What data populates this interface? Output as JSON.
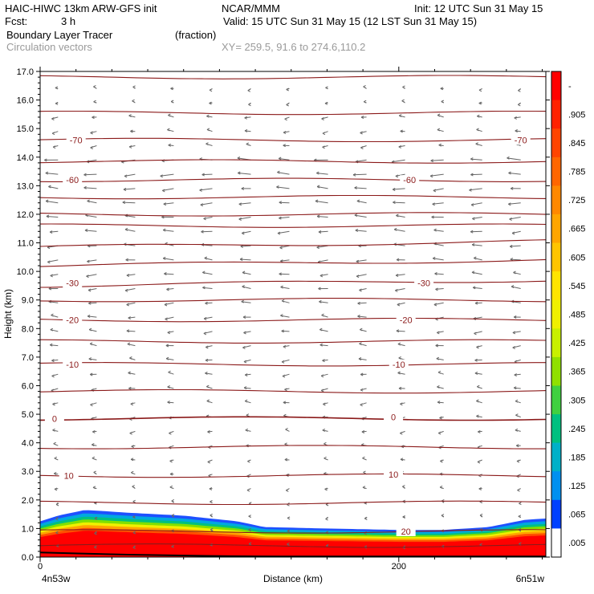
{
  "header": {
    "model": "HAIC-HIWC 13km ARW-GFS init",
    "org": "NCAR/MMM",
    "init": "Init: 12 UTC Sun 31 May 15",
    "fcst_label": "Fcst:",
    "fcst_value": "3 h",
    "valid": "Valid: 15 UTC Sun 31 May 15 (12 LST Sun 31 May 15)",
    "field": "Boundary Layer Tracer",
    "units": "(fraction)",
    "overlay": "Circulation vectors",
    "xy": "XY= 259.5, 91.6 to 274.6,110.2"
  },
  "chart_data": {
    "type": "heatmap",
    "xlabel": "Distance (km)",
    "ylabel": "Height (km)",
    "xlim": [
      0,
      282
    ],
    "ylim": [
      0,
      17
    ],
    "x_ticks": [
      {
        "value": 0,
        "label": "0"
      },
      {
        "value": 200,
        "label": "200"
      }
    ],
    "y_ticks": [
      "0.0",
      "1.0",
      "2.0",
      "3.0",
      "4.0",
      "5.0",
      "6.0",
      "7.0",
      "8.0",
      "9.0",
      "10.0",
      "11.0",
      "12.0",
      "13.0",
      "14.0",
      "15.0",
      "16.0",
      "17.0"
    ],
    "endpoints": {
      "left": "4n53w",
      "right": "6n51w"
    },
    "colorbar": {
      "labels": [
        "-",
        ".905",
        ".845",
        ".785",
        ".725",
        ".665",
        ".605",
        ".545",
        ".485",
        ".425",
        ".365",
        ".305",
        ".245",
        ".185",
        ".125",
        ".065",
        ".005"
      ],
      "colors": [
        "#ff0000",
        "#ff2200",
        "#ff4400",
        "#ff6600",
        "#ff8800",
        "#ffa500",
        "#ffc400",
        "#ffe400",
        "#f0f000",
        "#c8f000",
        "#90e000",
        "#40d040",
        "#00c080",
        "#00b0c8",
        "#0090f0",
        "#0040ff",
        "#ffffff"
      ]
    },
    "contours": {
      "color": "#8b1a1a",
      "label_positions": [
        {
          "label": "-70",
          "x": 20,
          "height": 14.6
        },
        {
          "label": "-70",
          "x": 268,
          "height": 14.6
        },
        {
          "label": "-60",
          "x": 18,
          "height": 13.2
        },
        {
          "label": "-60",
          "x": 206,
          "height": 13.2
        },
        {
          "label": "-30",
          "x": 18,
          "height": 9.6
        },
        {
          "label": "-30",
          "x": 214,
          "height": 9.6
        },
        {
          "label": "-20",
          "x": 18,
          "height": 8.3
        },
        {
          "label": "-20",
          "x": 204,
          "height": 8.3
        },
        {
          "label": "-10",
          "x": 18,
          "height": 6.75
        },
        {
          "label": "-10",
          "x": 200,
          "height": 6.75
        },
        {
          "label": "0",
          "x": 8,
          "height": 4.85
        },
        {
          "label": "0",
          "x": 197,
          "height": 4.9
        },
        {
          "label": "10",
          "x": 16,
          "height": 2.85
        },
        {
          "label": "10",
          "x": 197,
          "height": 2.9
        },
        {
          "label": "20",
          "x": 204,
          "height": 0.9
        }
      ],
      "levels_km": [
        0.4,
        0.9,
        1.9,
        2.85,
        3.85,
        4.85,
        5.8,
        6.75,
        7.55,
        8.3,
        9.0,
        9.6,
        10.3,
        10.95,
        11.6,
        12.0,
        12.6,
        13.2,
        13.85,
        14.6,
        15.55,
        16.8
      ]
    },
    "tracer_top_km": [
      {
        "x": 0,
        "top": 1.25,
        "core": 1.0
      },
      {
        "x": 10,
        "top": 1.45,
        "core": 1.2
      },
      {
        "x": 25,
        "top": 1.65,
        "core": 1.35
      },
      {
        "x": 50,
        "top": 1.55,
        "core": 1.3
      },
      {
        "x": 80,
        "top": 1.45,
        "core": 1.2
      },
      {
        "x": 110,
        "top": 1.25,
        "core": 1.0
      },
      {
        "x": 125,
        "top": 1.05,
        "core": 0.8
      },
      {
        "x": 160,
        "top": 1.0,
        "core": 0.75
      },
      {
        "x": 200,
        "top": 0.95,
        "core": 0.7
      },
      {
        "x": 225,
        "top": 0.95,
        "core": 0.7
      },
      {
        "x": 250,
        "top": 1.05,
        "core": 0.8
      },
      {
        "x": 270,
        "top": 1.3,
        "core": 1.0
      },
      {
        "x": 282,
        "top": 1.35,
        "core": 1.05
      }
    ]
  }
}
